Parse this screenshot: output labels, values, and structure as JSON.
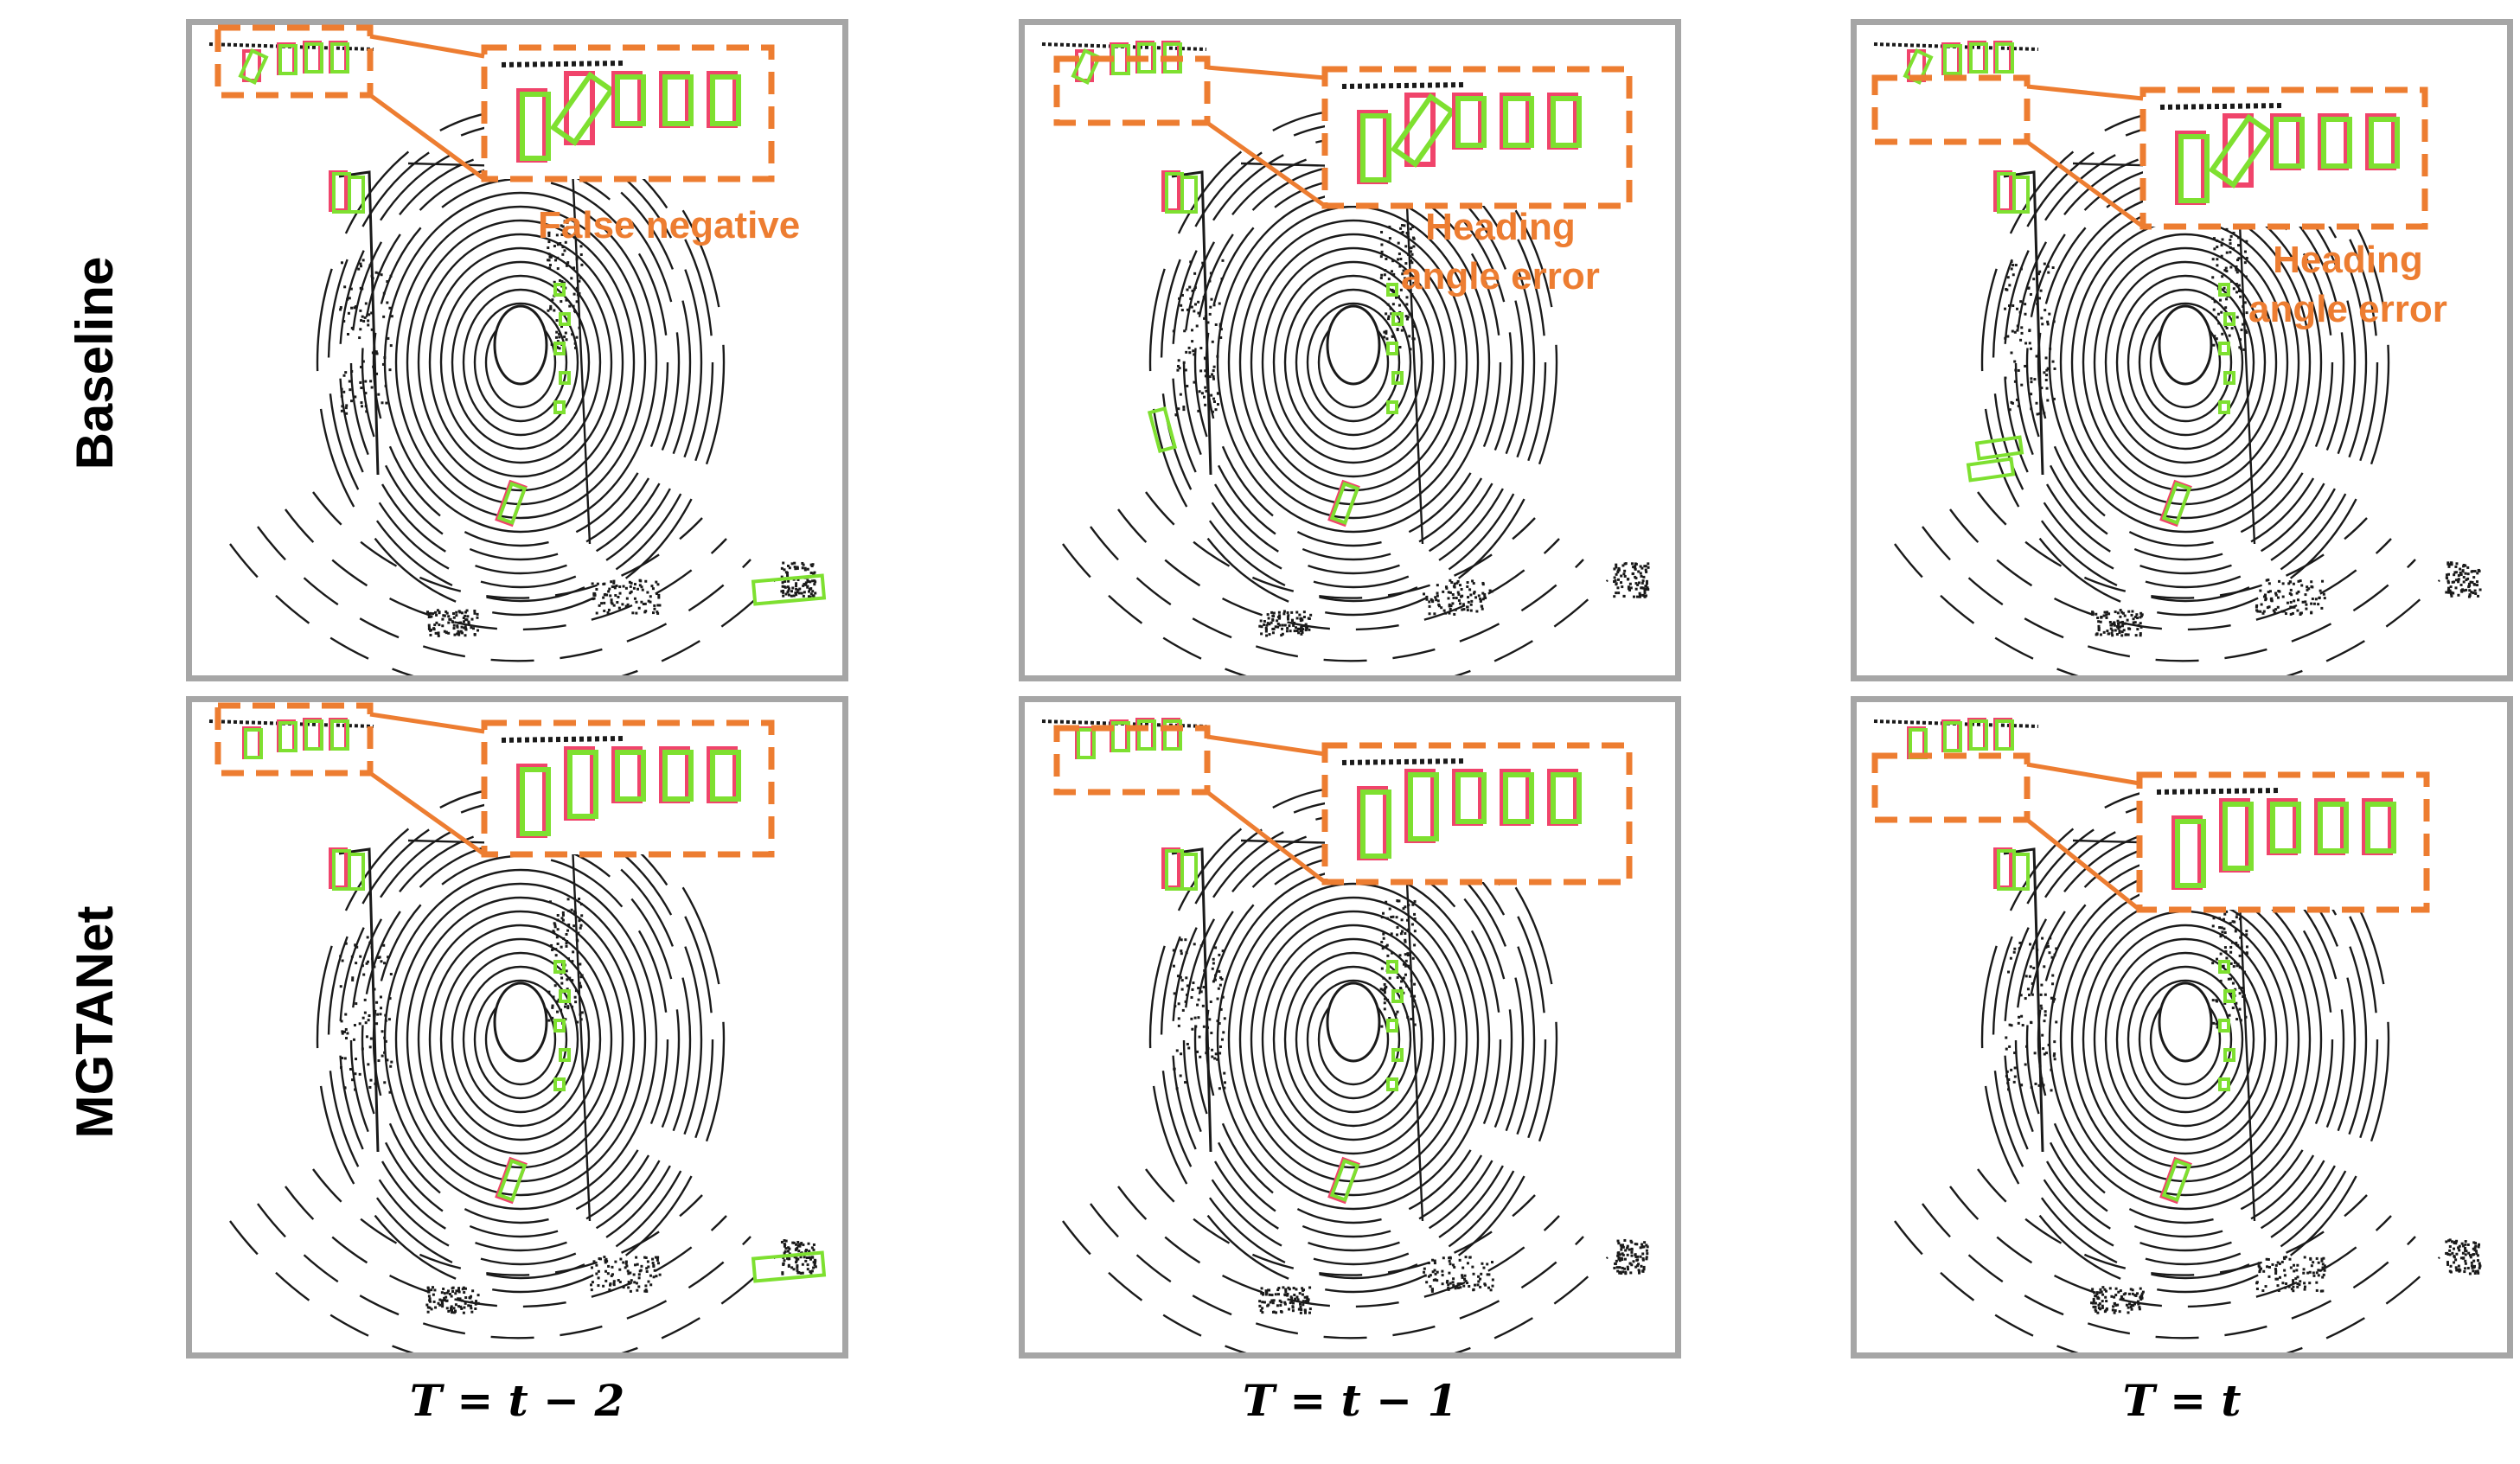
{
  "rows": [
    {
      "label": "Baseline"
    },
    {
      "label": "MGTANet"
    }
  ],
  "columns": [
    {
      "label": "T = t − 2"
    },
    {
      "label": "T = t − 1"
    },
    {
      "label": "T = t"
    }
  ],
  "annotations": {
    "false_negative": "False negative",
    "heading_1_line1": "Heading",
    "heading_1_line2": "angle error",
    "heading_2_line1": "Heading",
    "heading_2_line2": "angle error"
  },
  "colors": {
    "ground_truth": "#f0446b",
    "prediction": "#7ee030",
    "zoom_box": "#ed7d31",
    "frame": "#a6a6a6",
    "points": "#1a1a1a"
  }
}
